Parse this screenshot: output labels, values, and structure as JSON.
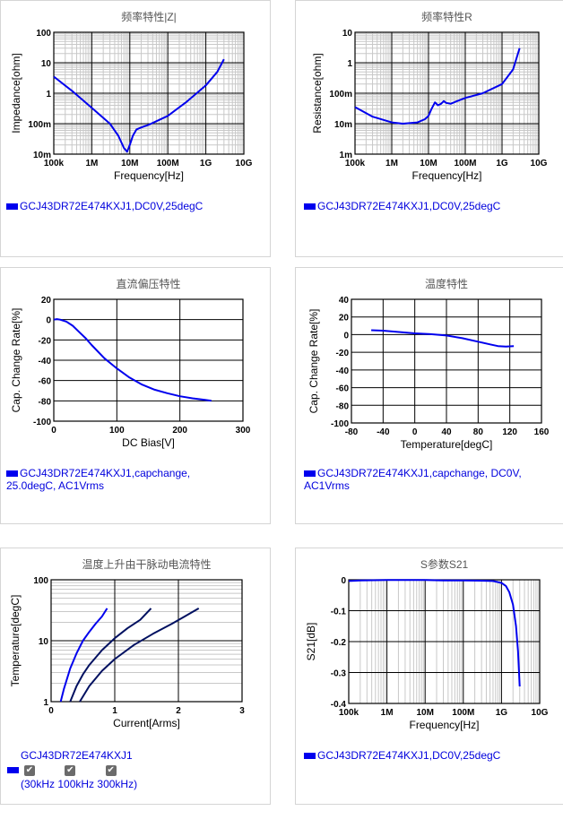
{
  "colors": {
    "curve": "#0000ee",
    "curve_dark": "#001060",
    "grid_minor": "#c8c8c8",
    "grid_major": "#000000",
    "legend_text": "#0000dd"
  },
  "chart_data": [
    {
      "type": "line",
      "title": "频率特性|Z|",
      "xlabel": "Frequency[Hz]",
      "ylabel": "Impedance[ohm]",
      "x_scale": "log",
      "y_scale": "log",
      "xlim": [
        100000,
        10000000000
      ],
      "ylim": [
        0.01,
        100
      ],
      "x_ticks": [
        {
          "v": 100000,
          "label": "100k"
        },
        {
          "v": 1000000,
          "label": "1M"
        },
        {
          "v": 10000000,
          "label": "10M"
        },
        {
          "v": 100000000,
          "label": "100M"
        },
        {
          "v": 1000000000,
          "label": "1G"
        },
        {
          "v": 10000000000,
          "label": "10G"
        }
      ],
      "y_ticks": [
        {
          "v": 100,
          "label": "100"
        },
        {
          "v": 10,
          "label": "10"
        },
        {
          "v": 1,
          "label": "1"
        },
        {
          "v": 0.1,
          "label": "100m"
        },
        {
          "v": 0.01,
          "label": "10m"
        }
      ],
      "legend": "GCJ43DR72E474KXJ1,DC0V,25degC",
      "series": [
        {
          "x": [
            100000,
            300000,
            1000000,
            3000000,
            5000000,
            7000000,
            8500000,
            10000000,
            12000000,
            15000000,
            20000000,
            30000000,
            50000000,
            100000000,
            300000000,
            1000000000,
            2000000000,
            3000000000
          ],
          "y": [
            3.5,
            1.2,
            0.33,
            0.1,
            0.04,
            0.016,
            0.012,
            0.02,
            0.04,
            0.065,
            0.075,
            0.09,
            0.12,
            0.18,
            0.5,
            1.8,
            5,
            13
          ]
        }
      ]
    },
    {
      "type": "line",
      "title": "频率特性R",
      "xlabel": "Frequency[Hz]",
      "ylabel": "Resistance[ohm]",
      "x_scale": "log",
      "y_scale": "log",
      "xlim": [
        100000,
        10000000000
      ],
      "ylim": [
        0.001,
        10
      ],
      "x_ticks": [
        {
          "v": 100000,
          "label": "100k"
        },
        {
          "v": 1000000,
          "label": "1M"
        },
        {
          "v": 10000000,
          "label": "10M"
        },
        {
          "v": 100000000,
          "label": "100M"
        },
        {
          "v": 1000000000,
          "label": "1G"
        },
        {
          "v": 10000000000,
          "label": "10G"
        }
      ],
      "y_ticks": [
        {
          "v": 10,
          "label": "10"
        },
        {
          "v": 1,
          "label": "1"
        },
        {
          "v": 0.1,
          "label": "100m"
        },
        {
          "v": 0.01,
          "label": "10m"
        },
        {
          "v": 0.001,
          "label": "1m"
        }
      ],
      "legend": "GCJ43DR72E474KXJ1,DC0V,25degC",
      "series": [
        {
          "x": [
            100000,
            300000,
            1000000,
            2000000,
            5000000,
            8000000,
            10000000,
            12000000,
            15000000,
            18000000,
            22000000,
            26000000,
            30000000,
            40000000,
            60000000,
            100000000,
            300000000,
            1000000000,
            2000000000,
            3000000000
          ],
          "y": [
            0.035,
            0.017,
            0.011,
            0.01,
            0.011,
            0.014,
            0.018,
            0.03,
            0.05,
            0.04,
            0.045,
            0.055,
            0.048,
            0.045,
            0.055,
            0.07,
            0.1,
            0.2,
            0.6,
            3
          ]
        }
      ]
    },
    {
      "type": "line",
      "title": "直流偏压特性",
      "xlabel": "DC Bias[V]",
      "ylabel": "Cap. Change Rate[%]",
      "xlim": [
        0,
        300
      ],
      "ylim": [
        -100,
        20
      ],
      "x_ticks": [
        {
          "v": 0,
          "label": "0"
        },
        {
          "v": 100,
          "label": "100"
        },
        {
          "v": 200,
          "label": "200"
        },
        {
          "v": 300,
          "label": "300"
        }
      ],
      "y_ticks": [
        {
          "v": 20,
          "label": "20"
        },
        {
          "v": 0,
          "label": "0"
        },
        {
          "v": -20,
          "label": "-20"
        },
        {
          "v": -40,
          "label": "-40"
        },
        {
          "v": -60,
          "label": "-60"
        },
        {
          "v": -80,
          "label": "-80"
        },
        {
          "v": -100,
          "label": "-100"
        }
      ],
      "legend": "GCJ43DR72E474KXJ1,capchange, 25.0degC, AC1Vrms",
      "series": [
        {
          "x": [
            0,
            5,
            10,
            20,
            30,
            40,
            50,
            60,
            80,
            100,
            120,
            140,
            160,
            180,
            200,
            220,
            240,
            250
          ],
          "y": [
            0,
            0.5,
            0,
            -2,
            -6,
            -12,
            -18,
            -25,
            -38,
            -48,
            -57,
            -64,
            -69,
            -72.5,
            -75.5,
            -77.5,
            -79,
            -80
          ]
        }
      ]
    },
    {
      "type": "line",
      "title": "温度特性",
      "xlabel": "Temperature[degC]",
      "ylabel": "Cap. Change Rate[%]",
      "xlim": [
        -80,
        160
      ],
      "ylim": [
        -100,
        40
      ],
      "x_ticks": [
        {
          "v": -80,
          "label": "-80"
        },
        {
          "v": -40,
          "label": "-40"
        },
        {
          "v": 0,
          "label": "0"
        },
        {
          "v": 40,
          "label": "40"
        },
        {
          "v": 80,
          "label": "80"
        },
        {
          "v": 120,
          "label": "120"
        },
        {
          "v": 160,
          "label": "160"
        }
      ],
      "y_ticks": [
        {
          "v": 40,
          "label": "40"
        },
        {
          "v": 20,
          "label": "20"
        },
        {
          "v": 0,
          "label": "0"
        },
        {
          "v": -20,
          "label": "-20"
        },
        {
          "v": -40,
          "label": "-40"
        },
        {
          "v": -60,
          "label": "-60"
        },
        {
          "v": -80,
          "label": "-80"
        },
        {
          "v": -100,
          "label": "-100"
        }
      ],
      "legend": "GCJ43DR72E474KXJ1,capchange, DC0V, AC1Vrms",
      "series": [
        {
          "x": [
            -55,
            -40,
            -20,
            0,
            20,
            40,
            60,
            80,
            95,
            105,
            115,
            125
          ],
          "y": [
            5,
            4.5,
            3,
            1.5,
            0.5,
            -1,
            -4,
            -8,
            -11,
            -13,
            -13.5,
            -13
          ]
        }
      ]
    },
    {
      "type": "line",
      "title": "温度上升由干脉动电流特性",
      "xlabel": "Current[Arms]",
      "ylabel": "Temperature[degC]",
      "y_scale": "log",
      "xlim": [
        0,
        3
      ],
      "ylim": [
        1,
        100
      ],
      "x_ticks": [
        {
          "v": 0,
          "label": "0"
        },
        {
          "v": 1,
          "label": "1"
        },
        {
          "v": 2,
          "label": "2"
        },
        {
          "v": 3,
          "label": "3"
        }
      ],
      "y_ticks": [
        {
          "v": 100,
          "label": "100"
        },
        {
          "v": 10,
          "label": "10"
        },
        {
          "v": 1,
          "label": "1"
        }
      ],
      "legend": "GCJ43DR72E474KXJ1",
      "checks": [
        {
          "label": "30kHz"
        },
        {
          "label": "100kHz"
        },
        {
          "label": "300kHz)"
        }
      ],
      "checks_open": "(",
      "series": [
        {
          "name": "30kHz",
          "color": "#0000ee",
          "x": [
            0.15,
            0.2,
            0.3,
            0.4,
            0.5,
            0.6,
            0.7,
            0.8,
            0.88
          ],
          "y": [
            1,
            1.6,
            3.5,
            6.2,
            10,
            14,
            19,
            25,
            34
          ]
        },
        {
          "name": "100kHz",
          "color": "#001060",
          "x": [
            0.3,
            0.4,
            0.5,
            0.6,
            0.8,
            1.0,
            1.2,
            1.4,
            1.57
          ],
          "y": [
            1,
            1.8,
            2.8,
            4,
            7,
            11,
            16,
            22,
            34
          ]
        },
        {
          "name": "300kHz",
          "color": "#001060",
          "x": [
            0.45,
            0.6,
            0.8,
            1.0,
            1.3,
            1.6,
            1.9,
            2.1,
            2.32
          ],
          "y": [
            1,
            1.8,
            3.2,
            5,
            8.5,
            13,
            19,
            25,
            34
          ]
        }
      ]
    },
    {
      "type": "line",
      "title": "S参数S21",
      "xlabel": "Frequency[Hz]",
      "ylabel": "S21[dB]",
      "x_scale": "log",
      "xlim": [
        100000,
        10000000000
      ],
      "ylim": [
        -0.4,
        0
      ],
      "x_ticks": [
        {
          "v": 100000,
          "label": "100k"
        },
        {
          "v": 1000000,
          "label": "1M"
        },
        {
          "v": 10000000,
          "label": "10M"
        },
        {
          "v": 100000000,
          "label": "100M"
        },
        {
          "v": 1000000000,
          "label": "1G"
        },
        {
          "v": 10000000000,
          "label": "10G"
        }
      ],
      "y_ticks": [
        {
          "v": 0,
          "label": "0"
        },
        {
          "v": -0.1,
          "label": "-0.1"
        },
        {
          "v": -0.2,
          "label": "-0.2"
        },
        {
          "v": -0.3,
          "label": "-0.3"
        },
        {
          "v": -0.4,
          "label": "-0.4"
        }
      ],
      "legend": "GCJ43DR72E474KXJ1,DC0V,25degC",
      "series": [
        {
          "x": [
            100000,
            200000,
            1000000,
            10000000,
            30000000,
            100000000,
            300000000,
            600000000,
            1000000000,
            1300000000,
            1600000000,
            2000000000,
            2400000000,
            2700000000,
            3000000000
          ],
          "y": [
            -0.004,
            -0.002,
            -0.001,
            -0.001,
            -0.002,
            -0.002,
            -0.003,
            -0.004,
            -0.01,
            -0.02,
            -0.04,
            -0.08,
            -0.15,
            -0.23,
            -0.345
          ]
        }
      ]
    }
  ]
}
